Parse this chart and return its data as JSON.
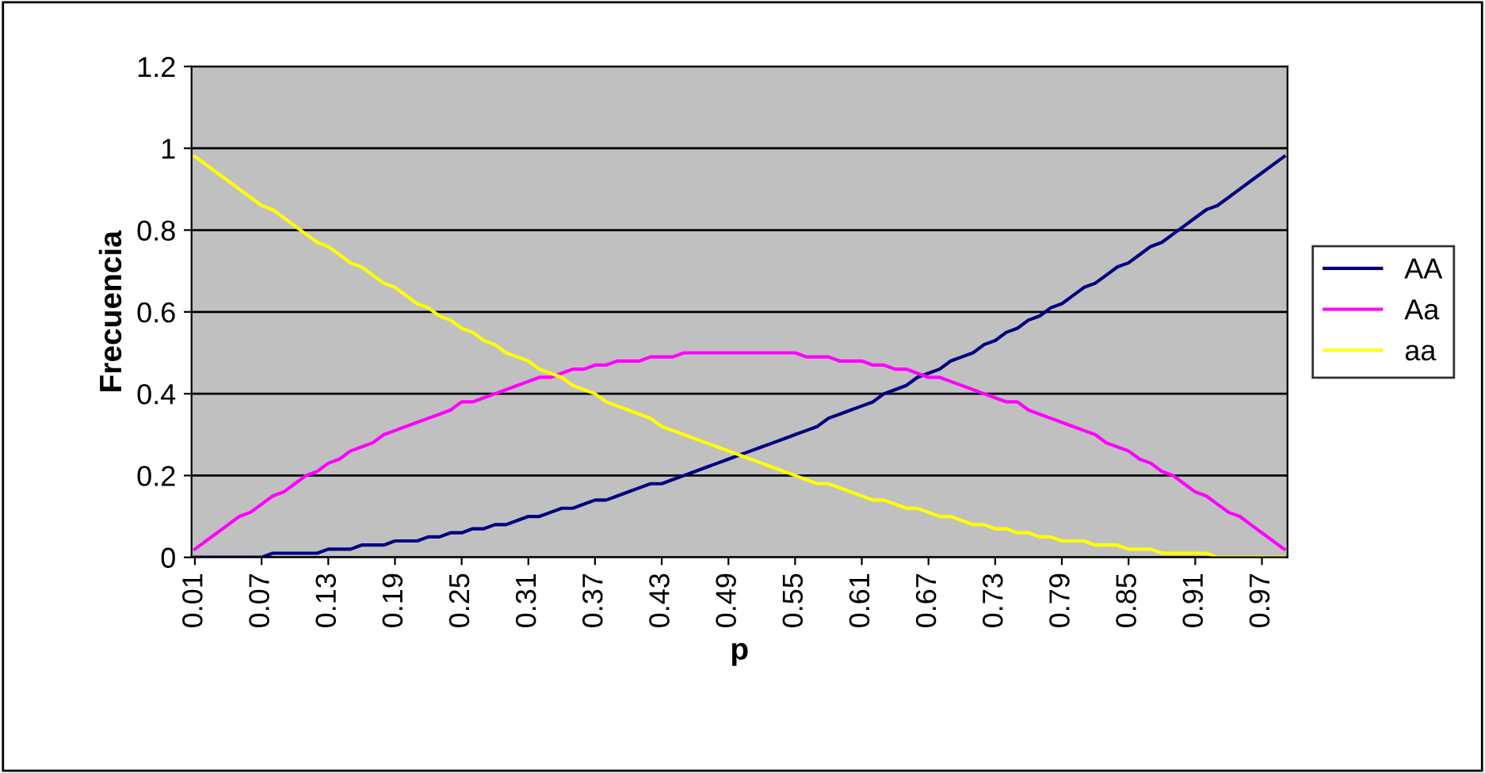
{
  "chart_data": {
    "type": "line",
    "xlabel": "p",
    "ylabel": "Frecuencia",
    "categories": [
      "0.01",
      null,
      null,
      null,
      null,
      null,
      "0.07",
      null,
      null,
      null,
      null,
      null,
      "0.13",
      null,
      null,
      null,
      null,
      null,
      "0.19",
      null,
      null,
      null,
      null,
      null,
      "0.25",
      null,
      null,
      null,
      null,
      null,
      "0.31",
      null,
      null,
      null,
      null,
      null,
      "0.37",
      null,
      null,
      null,
      null,
      null,
      "0.43",
      null,
      null,
      null,
      null,
      null,
      "0.49",
      null,
      null,
      null,
      null,
      null,
      "0.55",
      null,
      null,
      null,
      null,
      null,
      "0.61",
      null,
      null,
      null,
      null,
      null,
      "0.67",
      null,
      null,
      null,
      null,
      null,
      "0.73",
      null,
      null,
      null,
      null,
      null,
      "0.79",
      null,
      null,
      null,
      null,
      null,
      "0.85",
      null,
      null,
      null,
      null,
      null,
      "0.91",
      null,
      null,
      null,
      null,
      null,
      "0.97",
      null,
      null
    ],
    "series": [
      {
        "name": "AA",
        "color": "#000080",
        "values": [
          0.0,
          0.0,
          0.0,
          0.0,
          0.0,
          0.0,
          0.0,
          0.01,
          0.01,
          0.01,
          0.01,
          0.01,
          0.02,
          0.02,
          0.02,
          0.03,
          0.03,
          0.03,
          0.04,
          0.04,
          0.04,
          0.05,
          0.05,
          0.06,
          0.06,
          0.07,
          0.07,
          0.08,
          0.08,
          0.09,
          0.1,
          0.1,
          0.11,
          0.12,
          0.12,
          0.13,
          0.14,
          0.14,
          0.15,
          0.16,
          0.17,
          0.18,
          0.18,
          0.19,
          0.2,
          0.21,
          0.22,
          0.23,
          0.24,
          0.25,
          0.26,
          0.27,
          0.28,
          0.29,
          0.3,
          0.31,
          0.32,
          0.34,
          0.35,
          0.36,
          0.37,
          0.38,
          0.4,
          0.41,
          0.42,
          0.44,
          0.45,
          0.46,
          0.48,
          0.49,
          0.5,
          0.52,
          0.53,
          0.55,
          0.56,
          0.58,
          0.59,
          0.61,
          0.62,
          0.64,
          0.66,
          0.67,
          0.69,
          0.71,
          0.72,
          0.74,
          0.76,
          0.77,
          0.79,
          0.81,
          0.83,
          0.85,
          0.86,
          0.88,
          0.9,
          0.92,
          0.94,
          0.96,
          0.98
        ]
      },
      {
        "name": "Aa",
        "color": "#ff00ff",
        "values": [
          0.02,
          0.04,
          0.06,
          0.08,
          0.1,
          0.11,
          0.13,
          0.15,
          0.16,
          0.18,
          0.2,
          0.21,
          0.23,
          0.24,
          0.26,
          0.27,
          0.28,
          0.3,
          0.31,
          0.32,
          0.33,
          0.34,
          0.35,
          0.36,
          0.38,
          0.38,
          0.39,
          0.4,
          0.41,
          0.42,
          0.43,
          0.44,
          0.44,
          0.45,
          0.46,
          0.46,
          0.47,
          0.47,
          0.48,
          0.48,
          0.48,
          0.49,
          0.49,
          0.49,
          0.5,
          0.5,
          0.5,
          0.5,
          0.5,
          0.5,
          0.5,
          0.5,
          0.5,
          0.5,
          0.5,
          0.49,
          0.49,
          0.49,
          0.48,
          0.48,
          0.48,
          0.47,
          0.47,
          0.46,
          0.46,
          0.45,
          0.44,
          0.44,
          0.43,
          0.42,
          0.41,
          0.4,
          0.39,
          0.38,
          0.38,
          0.36,
          0.35,
          0.34,
          0.33,
          0.32,
          0.31,
          0.3,
          0.28,
          0.27,
          0.26,
          0.24,
          0.23,
          0.21,
          0.2,
          0.18,
          0.16,
          0.15,
          0.13,
          0.11,
          0.1,
          0.08,
          0.06,
          0.04,
          0.02
        ]
      },
      {
        "name": "aa",
        "color": "#ffff00",
        "values": [
          0.98,
          0.96,
          0.94,
          0.92,
          0.9,
          0.88,
          0.86,
          0.85,
          0.83,
          0.81,
          0.79,
          0.77,
          0.76,
          0.74,
          0.72,
          0.71,
          0.69,
          0.67,
          0.66,
          0.64,
          0.62,
          0.61,
          0.59,
          0.58,
          0.56,
          0.55,
          0.53,
          0.52,
          0.5,
          0.49,
          0.48,
          0.46,
          0.45,
          0.44,
          0.42,
          0.41,
          0.4,
          0.38,
          0.37,
          0.36,
          0.35,
          0.34,
          0.32,
          0.31,
          0.3,
          0.29,
          0.28,
          0.27,
          0.26,
          0.25,
          0.24,
          0.23,
          0.22,
          0.21,
          0.2,
          0.19,
          0.18,
          0.18,
          0.17,
          0.16,
          0.15,
          0.14,
          0.14,
          0.13,
          0.12,
          0.12,
          0.11,
          0.1,
          0.1,
          0.09,
          0.08,
          0.08,
          0.07,
          0.07,
          0.06,
          0.06,
          0.05,
          0.05,
          0.04,
          0.04,
          0.04,
          0.03,
          0.03,
          0.03,
          0.02,
          0.02,
          0.02,
          0.01,
          0.01,
          0.01,
          0.01,
          0.01,
          0.0,
          0.0,
          0.0,
          0.0,
          0.0,
          0.0,
          0.0
        ]
      }
    ],
    "ylim": [
      0,
      1.2
    ],
    "yticks": [
      0,
      0.2,
      0.4,
      0.6,
      0.8,
      1,
      1.2
    ],
    "grid": "y",
    "legend": "right"
  }
}
